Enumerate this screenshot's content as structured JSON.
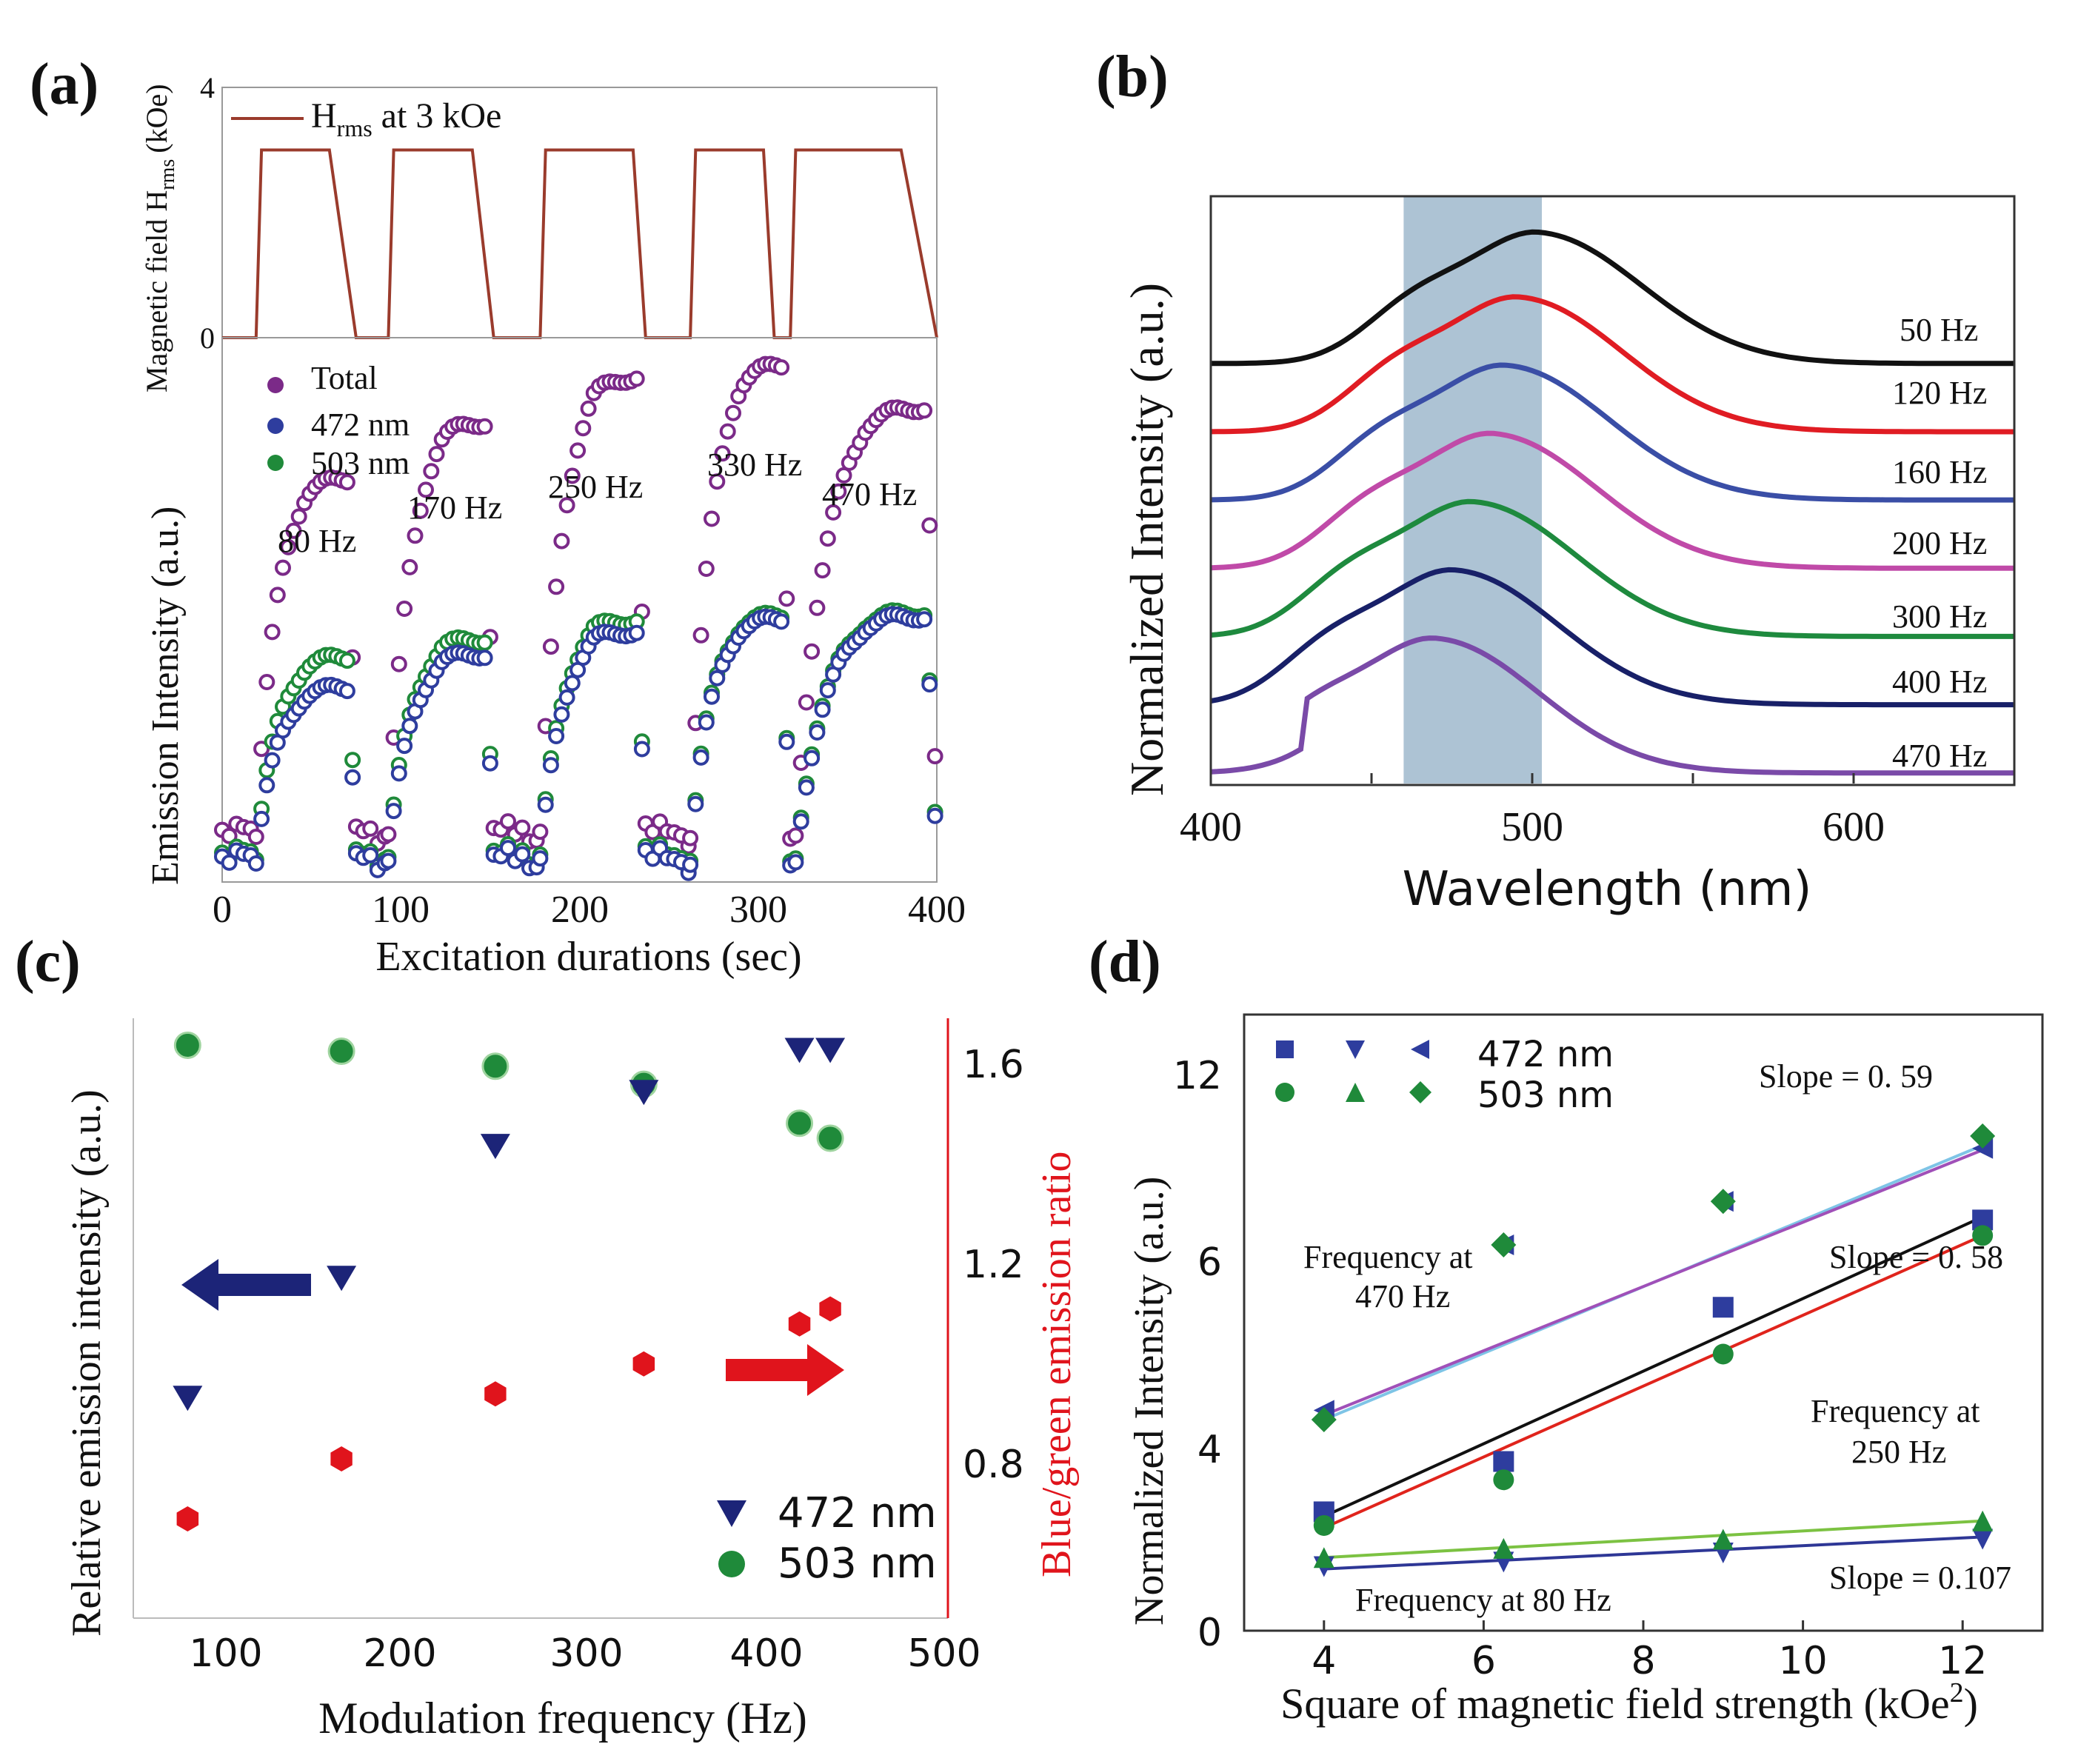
{
  "panel_labels": [
    "(a)",
    "(b)",
    "(c)",
    "(d)"
  ],
  "colors": {
    "field": "#9a3b2c",
    "total": "#7b2a88",
    "blue": "#2e3d9e",
    "green": "#1f8a3a",
    "red": "#e0141c",
    "navy": "#1c2478",
    "band": "#9fb8cc",
    "b_black": "#111111",
    "b_red": "#e01c23",
    "b_blue": "#3a4ea6",
    "b_pink": "#c04aa8",
    "b_green": "#1e8a3e",
    "b_navy": "#182068",
    "b_purple": "#7a4aa8",
    "d_black": "#111111",
    "d_red": "#e0241c",
    "d_lightblue": "#7ec4e6",
    "d_purple": "#a050b8",
    "d_lightgreen": "#7cc242",
    "d_navy": "#2e3796"
  },
  "chart_data": [
    {
      "id": "a",
      "type": "scatter",
      "xlabel": "Excitation durations (sec)",
      "xlim": [
        0,
        400
      ],
      "xticks": [
        "0",
        "100",
        "200",
        "300",
        "400"
      ],
      "top": {
        "ylabel": "Magnetic field H",
        "ylabel_sub": "rms",
        "ylabel_unit": "(kOe)",
        "ylim": [
          0,
          4
        ],
        "yticks": [
          "0",
          "4"
        ],
        "legend_main": "H",
        "legend_sub": "rms",
        "legend_rest": " at 3 kOe",
        "field_series": {
          "x": [
            0,
            19,
            22,
            60,
            75,
            93,
            96,
            140,
            152,
            178,
            181,
            230,
            237,
            262,
            265,
            303,
            309,
            318,
            321,
            380,
            400
          ],
          "y": [
            0,
            0,
            3,
            3,
            0,
            0,
            3,
            3,
            0,
            0,
            3,
            3,
            0,
            0,
            3,
            3,
            0,
            0,
            3,
            3,
            0
          ]
        }
      },
      "bottom": {
        "ylabel": "Emission Intensity (a.u.)",
        "ylim": [
          0,
          10
        ],
        "legend": [
          "Total",
          "472 nm",
          "503 nm"
        ],
        "series": [
          {
            "name": "Total",
            "pulses": [
              [
                1.2,
                10.6,
                1.0
              ],
              [
                1.2,
                12.1,
                1.0
              ],
              [
                1.2,
                13.3,
                1.0
              ],
              [
                1.2,
                13.6,
                1.0
              ],
              [
                1.2,
                12.5,
                1.0
              ]
            ]
          },
          {
            "name": "503 nm",
            "pulses": [
              [
                0.6,
                5.9,
                0.5
              ],
              [
                0.6,
                6.4,
                0.5
              ],
              [
                0.6,
                6.9,
                0.5
              ],
              [
                0.6,
                7.0,
                0.5
              ],
              [
                0.6,
                7.1,
                0.5
              ]
            ]
          },
          {
            "name": "472 nm",
            "pulses": [
              [
                0.5,
                5.1,
                0.4
              ],
              [
                0.5,
                6.0,
                0.4
              ],
              [
                0.5,
                6.6,
                0.4
              ],
              [
                0.5,
                6.9,
                0.4
              ],
              [
                0.5,
                7.0,
                0.4
              ]
            ]
          }
        ],
        "pulse_windows": [
          [
            19,
            75
          ],
          [
            93,
            152
          ],
          [
            178,
            237
          ],
          [
            262,
            318
          ],
          [
            321,
            400
          ]
        ],
        "annotations": [
          "80 Hz",
          "170 Hz",
          "250 Hz",
          "330 Hz",
          "470 Hz"
        ]
      }
    },
    {
      "id": "b",
      "type": "line",
      "xlabel": "Wavelength (nm)",
      "ylabel": "Normalized Intensity (a.u.)",
      "xlim": [
        400,
        650
      ],
      "xticks": [
        "400",
        "500",
        "600"
      ],
      "band": [
        460,
        503
      ],
      "series": [
        {
          "name": "50 Hz",
          "peak": 502,
          "baseline": 6.0,
          "amp": 1.9
        },
        {
          "name": "120 Hz",
          "peak": 496,
          "baseline": 5.0,
          "amp": 1.95
        },
        {
          "name": "160 Hz",
          "peak": 492,
          "baseline": 4.0,
          "amp": 1.95
        },
        {
          "name": "200 Hz",
          "peak": 488,
          "baseline": 3.0,
          "amp": 1.95
        },
        {
          "name": "300 Hz",
          "peak": 482,
          "baseline": 2.0,
          "amp": 1.95
        },
        {
          "name": "400 Hz",
          "peak": 476,
          "baseline": 1.0,
          "amp": 1.95
        },
        {
          "name": "470 Hz",
          "peak": 470,
          "baseline": 0.0,
          "amp": 1.95
        }
      ]
    },
    {
      "id": "c",
      "type": "scatter",
      "xlabel": "Modulation frequency (Hz)",
      "ylabel_left": "Relative emission intensity (a.u.)",
      "ylabel_right": "Blue/green emission ratio",
      "xlim": [
        50,
        500
      ],
      "xticks": [
        "100",
        "200",
        "300",
        "400",
        "500"
      ],
      "ylim_right": [
        0.5,
        1.7
      ],
      "yticks_right": [
        "0.8",
        "1.2",
        "1.6"
      ],
      "ylim_left": [
        0,
        1
      ],
      "legend": [
        "472 nm",
        "503 nm"
      ],
      "green_503nm": {
        "x": [
          80,
          165,
          250,
          332,
          418,
          435
        ],
        "y": [
          0.955,
          0.945,
          0.92,
          0.89,
          0.825,
          0.8
        ]
      },
      "blue_472nm": {
        "x": [
          80,
          165,
          250,
          332,
          418,
          435
        ],
        "y": [
          0.37,
          0.57,
          0.79,
          0.88,
          0.95,
          0.95
        ]
      },
      "ratio": {
        "x": [
          80,
          165,
          250,
          332,
          418,
          435
        ],
        "y": [
          0.68,
          0.8,
          0.93,
          0.99,
          1.07,
          1.1
        ]
      }
    },
    {
      "id": "d",
      "type": "scatter",
      "xlabel": "Square of magnetic field strength (kOe",
      "xlabel_sup": "2",
      "xlabel_end": ")",
      "ylabel": "Normalized Intensity (a.u.)",
      "xlim": [
        3,
        13
      ],
      "xticks": [
        "4",
        "6",
        "8",
        "10",
        "12"
      ],
      "ylim": [
        0,
        13
      ],
      "yticks": [
        "0",
        "4",
        "6",
        "12"
      ],
      "legend": [
        "472 nm",
        "503 nm"
      ],
      "x": [
        4,
        6.25,
        9,
        12.25
      ],
      "series": [
        {
          "name": "472 nm 250 Hz",
          "marker": "square",
          "color": "blue",
          "y": [
            2.6,
            3.7,
            5.5,
            7.3
          ]
        },
        {
          "name": "503 nm 250 Hz",
          "marker": "circle",
          "color": "green",
          "y": [
            2.3,
            3.3,
            5.0,
            6.8
          ]
        },
        {
          "name": "472 nm 80 Hz",
          "marker": "triangle-down",
          "color": "blue",
          "y": [
            1.4,
            1.5,
            1.7,
            2.0
          ]
        },
        {
          "name": "503 nm 80 Hz",
          "marker": "triangle-up",
          "color": "green",
          "y": [
            1.6,
            1.8,
            2.0,
            2.4
          ]
        },
        {
          "name": "472 nm 470 Hz",
          "marker": "triangle-left",
          "color": "blue",
          "y": [
            4.4,
            6.5,
            7.9,
            9.6
          ]
        },
        {
          "name": "503 nm 470 Hz",
          "marker": "diamond",
          "color": "green",
          "y": [
            4.3,
            6.5,
            7.9,
            10.0
          ]
        }
      ],
      "fits": [
        {
          "name": "fit 472 nm 250 Hz",
          "color": "d_black",
          "y": [
            2.5,
            7.4
          ]
        },
        {
          "name": "fit 503 nm 250 Hz",
          "color": "d_red",
          "y": [
            2.25,
            6.8
          ]
        },
        {
          "name": "fit 472 nm 80 Hz",
          "color": "d_navy",
          "y": [
            1.35,
            2.05
          ]
        },
        {
          "name": "fit 503 nm 80 Hz",
          "color": "d_lightgreen",
          "y": [
            1.6,
            2.4
          ]
        },
        {
          "name": "fit 472 nm 470 Hz",
          "color": "d_lightblue",
          "y": [
            4.3,
            9.7
          ]
        },
        {
          "name": "fit 503 nm 470 Hz",
          "color": "d_purple",
          "y": [
            4.35,
            9.55
          ]
        }
      ],
      "annotations": {
        "slope_470": "Slope = 0. 59",
        "slope_250": "Slope = 0. 58",
        "slope_80": "Slope = 0.107",
        "freq_470_line1": "Frequency at",
        "freq_470_line2": "470 Hz",
        "freq_250_line1": "Frequency at",
        "freq_250_line2": "250 Hz",
        "freq_80": "Frequency at 80 Hz"
      }
    }
  ]
}
